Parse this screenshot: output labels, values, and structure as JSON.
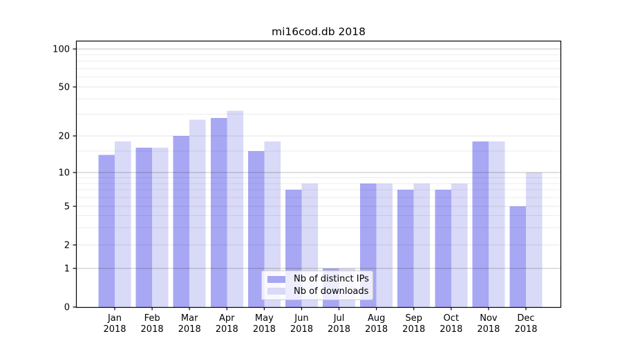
{
  "figure": {
    "title": "mi16cod.db 2018",
    "background": "#ffffff"
  },
  "chart_data": {
    "type": "bar",
    "title": "mi16cod.db 2018",
    "categories": [
      "Jan",
      "Feb",
      "Mar",
      "Apr",
      "May",
      "Jun",
      "Jul",
      "Aug",
      "Sep",
      "Oct",
      "Nov",
      "Dec"
    ],
    "category_year": "2018",
    "series": [
      {
        "name": "Nb of distinct IPs",
        "color": "#a7a7f4",
        "values": [
          14,
          16,
          20,
          28,
          15,
          7,
          1,
          8,
          7,
          7,
          18,
          5
        ]
      },
      {
        "name": "Nb of downloads",
        "color": "#d9d9f8",
        "values": [
          18,
          16,
          27,
          32,
          18,
          8,
          1,
          8,
          8,
          8,
          18,
          10
        ]
      }
    ],
    "xlabel": "",
    "ylabel": "",
    "yticks": [
      0,
      1,
      2,
      5,
      10,
      20,
      50,
      100
    ],
    "ylim": [
      0,
      110
    ],
    "yscale": "log-like (labeled ticks 0,1,2,5,10,20,50,100)",
    "grid": "horizontal",
    "legend_position": "lower-center-inside",
    "colors": {
      "grid_minor": "rgba(0,0,0,0.07)",
      "grid_labeled": "rgba(0,0,0,0.10)",
      "grid_decade": "rgba(0,0,0,0.24)",
      "axis": "#000000",
      "text": "#000000"
    }
  }
}
